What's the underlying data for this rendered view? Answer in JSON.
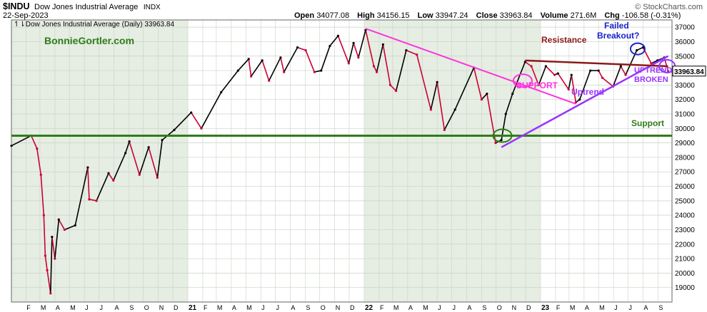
{
  "header": {
    "symbol": "$INDU",
    "name": "Dow Jones Industrial Average",
    "exchange": "INDX",
    "date": "22-Sep-2023",
    "brand": "© StockCharts.com",
    "open_label": "Open",
    "open": "34077.08",
    "high_label": "High",
    "high": "34156.15",
    "low_label": "Low",
    "low": "33947.24",
    "close_label": "Close",
    "close": "33963.84",
    "volume_label": "Volume",
    "volume": "271.6M",
    "chg_label": "Chg",
    "chg": "-106.58 (-0.31%)"
  },
  "chart_data": {
    "type": "line",
    "title": "Dow Jones Industrial Average (Daily) 33963.84",
    "xlabel": "",
    "ylabel": "",
    "ylim": [
      18000,
      37500
    ],
    "grid": true,
    "last_value": "33963.84",
    "y_ticks": [
      19000,
      20000,
      21000,
      22000,
      23000,
      24000,
      25000,
      26000,
      27000,
      28000,
      29000,
      30000,
      31000,
      32000,
      33000,
      34000,
      35000,
      36000,
      37000
    ],
    "x_ticks": [
      "F",
      "M",
      "A",
      "M",
      "J",
      "J",
      "A",
      "S",
      "O",
      "N",
      "D",
      "21",
      "F",
      "M",
      "A",
      "M",
      "J",
      "J",
      "A",
      "S",
      "O",
      "N",
      "D",
      "22",
      "F",
      "M",
      "A",
      "M",
      "J",
      "J",
      "A",
      "S",
      "O",
      "N",
      "D",
      "23",
      "F",
      "M",
      "A",
      "M",
      "J",
      "J",
      "A",
      "S"
    ],
    "series": [
      {
        "name": "",
        "color": "#000000",
        "down_color": "#cc0033",
        "x": [
          "2020-01-02",
          "2020-02-12",
          "2020-02-24",
          "2020-03-03",
          "2020-03-09",
          "2020-03-12",
          "2020-03-16",
          "2020-03-23",
          "2020-03-26",
          "2020-04-01",
          "2020-04-09",
          "2020-04-21",
          "2020-05-13",
          "2020-06-08",
          "2020-06-11",
          "2020-06-26",
          "2020-07-21",
          "2020-07-31",
          "2020-08-25",
          "2020-09-02",
          "2020-09-23",
          "2020-10-12",
          "2020-10-30",
          "2020-11-09",
          "2020-12-04",
          "2021-01-08",
          "2021-01-29",
          "2021-03-11",
          "2021-04-15",
          "2021-05-07",
          "2021-05-12",
          "2021-06-04",
          "2021-06-18",
          "2021-07-12",
          "2021-07-19",
          "2021-08-16",
          "2021-09-02",
          "2021-09-20",
          "2021-10-04",
          "2021-10-22",
          "2021-11-08",
          "2021-11-30",
          "2021-12-10",
          "2021-12-20",
          "2022-01-04",
          "2022-01-21",
          "2022-01-27",
          "2022-02-09",
          "2022-02-24",
          "2022-03-08",
          "2022-03-29",
          "2022-04-20",
          "2022-05-19",
          "2022-06-01",
          "2022-06-16",
          "2022-07-08",
          "2022-08-16",
          "2022-09-01",
          "2022-09-12",
          "2022-09-30",
          "2022-10-12",
          "2022-10-21",
          "2022-11-04",
          "2022-11-30",
          "2022-12-13",
          "2022-12-28",
          "2023-01-12",
          "2023-01-30",
          "2023-02-06",
          "2023-02-28",
          "2023-03-06",
          "2023-03-15",
          "2023-03-23",
          "2023-04-14",
          "2023-05-01",
          "2023-05-09",
          "2023-05-31",
          "2023-06-16",
          "2023-06-26",
          "2023-07-19",
          "2023-08-01",
          "2023-08-18",
          "2023-08-31",
          "2023-09-14",
          "2023-09-22"
        ],
        "values": [
          28800,
          29500,
          28600,
          26800,
          24000,
          21200,
          20200,
          18600,
          22500,
          21000,
          23700,
          23000,
          23300,
          27300,
          25100,
          25000,
          26900,
          26400,
          28300,
          29100,
          26800,
          28700,
          26600,
          29200,
          29900,
          31100,
          30000,
          32500,
          34000,
          34800,
          33600,
          34700,
          33300,
          34900,
          33900,
          35600,
          35400,
          33900,
          34000,
          35700,
          36400,
          34500,
          35900,
          34900,
          36800,
          34300,
          33900,
          35800,
          33000,
          32600,
          35400,
          35100,
          31300,
          33200,
          29900,
          31300,
          34200,
          32000,
          32400,
          29000,
          29200,
          31000,
          32400,
          34600,
          34300,
          33000,
          34300,
          33700,
          33800,
          32700,
          33700,
          31800,
          32000,
          34000,
          34000,
          33500,
          32900,
          34300,
          33700,
          35400,
          35600,
          34500,
          34700,
          34900,
          33963.84
        ]
      }
    ],
    "annotations": {
      "watermark": "BonnieGortler.com",
      "resistance_label": "Resistance",
      "failed_label": "Failed",
      "breakout_label": "Breakout?",
      "support_label_magenta": "SUPPORT",
      "uptrend_label": "Uptrend",
      "uptrend_broken_line1": "UPTREND",
      "uptrend_broken_line2": "BROKEN",
      "support_label_green": "Support"
    },
    "colors": {
      "plot_bg": "#ffffff",
      "shade_bg": "#e6ede3",
      "grid": "#c9d3c5",
      "support_green": "#2e7d1a",
      "downtrend_magenta": "#ff33dd",
      "uptrend_purple": "#9933ff",
      "resistance_red": "#8b1a1a",
      "failed_blue": "#1a22cc",
      "watermark_green": "#2e7d1a"
    }
  }
}
